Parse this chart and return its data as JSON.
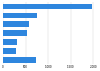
{
  "values": [
    1972,
    750,
    580,
    540,
    320,
    280,
    740
  ],
  "bar_color": "#2e86de",
  "background_color": "#ffffff",
  "figsize": [
    1.0,
    0.71
  ],
  "dpi": 100,
  "grid_color": "#d0d0d0",
  "bar_height": 0.65
}
